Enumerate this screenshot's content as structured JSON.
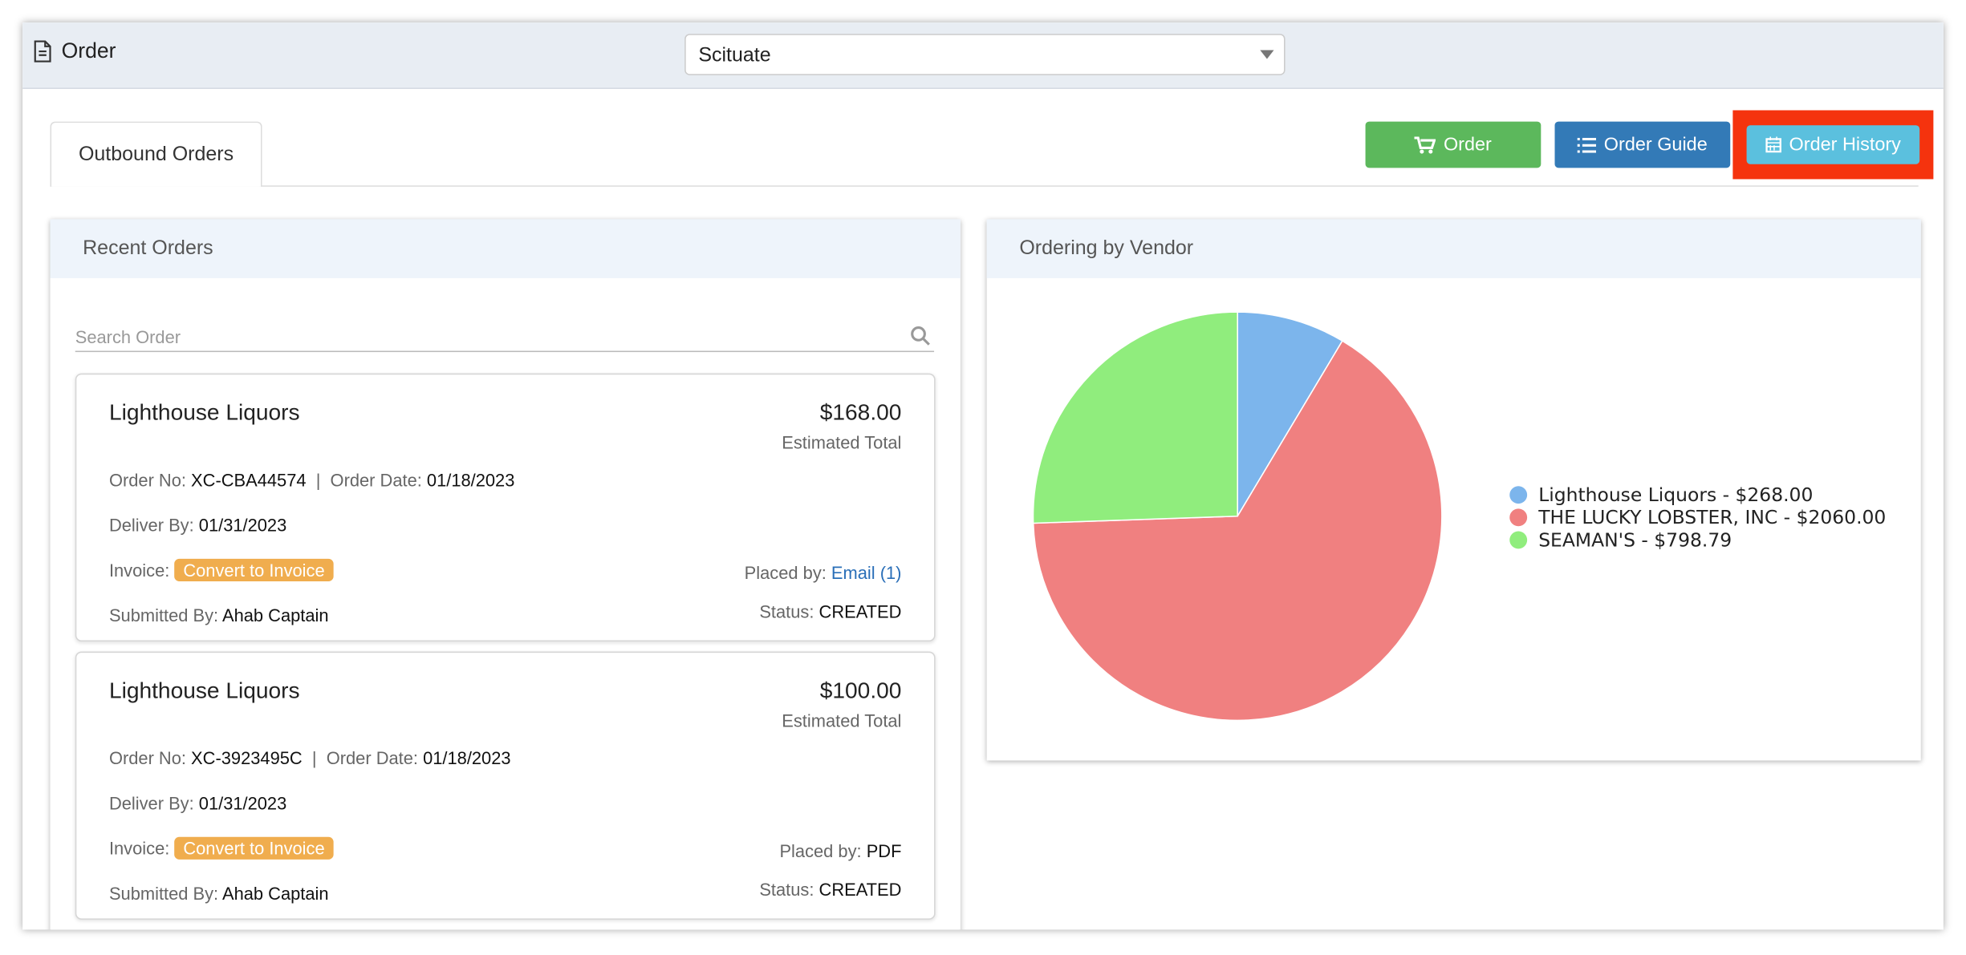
{
  "header": {
    "title": "Order",
    "location": "Scituate"
  },
  "tabs": [
    "Outbound Orders"
  ],
  "buttons": [
    "Order",
    "Order Guide",
    "Order History"
  ],
  "recent_orders": {
    "title": "Recent Orders",
    "search_placeholder": "Search Order",
    "orders": [
      {
        "vendor": "Lighthouse Liquors",
        "total": "$168.00",
        "total_label": "Estimated Total",
        "order_no_label": "Order No:",
        "order_no": "XC-CBA44574",
        "order_date_label": "Order Date:",
        "order_date": "01/18/2023",
        "deliver_by_label": "Deliver By:",
        "deliver_by": "01/31/2023",
        "invoice_label": "Invoice:",
        "invoice_action": "Convert to Invoice",
        "placed_by_label": "Placed by:",
        "placed_by": "Email (1)",
        "submitted_by_label": "Submitted By:",
        "submitted_by": "Ahab Captain",
        "status_label": "Status:",
        "status": "CREATED"
      },
      {
        "vendor": "Lighthouse Liquors",
        "total": "$100.00",
        "total_label": "Estimated Total",
        "order_no_label": "Order No:",
        "order_no": "XC-3923495C",
        "order_date_label": "Order Date:",
        "order_date": "01/18/2023",
        "deliver_by_label": "Deliver By:",
        "deliver_by": "01/31/2023",
        "invoice_label": "Invoice:",
        "invoice_action": "Convert to Invoice",
        "placed_by_label": "Placed by:",
        "placed_by": "PDF",
        "submitted_by_label": "Submitted By:",
        "submitted_by": "Ahab Captain",
        "status_label": "Status:",
        "status": "CREATED"
      }
    ]
  },
  "vendor_chart": {
    "type": "pie",
    "title": "Ordering by Vendor",
    "legend_labels": [
      "Lighthouse Liquors - $268.00",
      "THE LUCKY LOBSTER, INC - $2060.00",
      "SEAMAN'S - $798.79"
    ],
    "values": [
      268,
      2060,
      798.79
    ],
    "colors": [
      "#7cb5ec",
      "#f08080",
      "#90ed7d"
    ]
  }
}
